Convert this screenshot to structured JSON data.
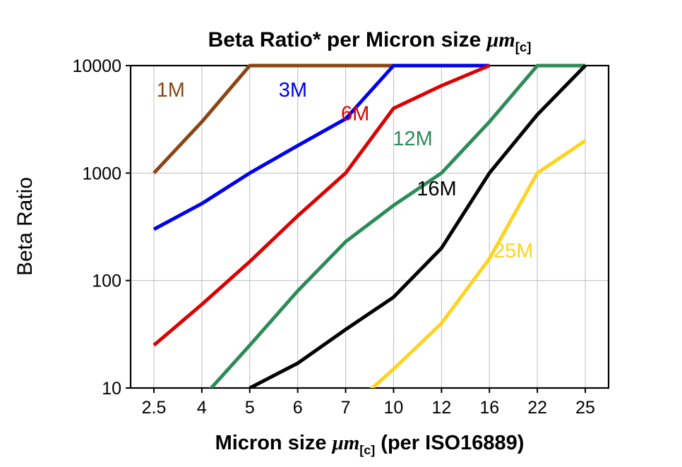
{
  "chart": {
    "title_prefix": "Beta Ratio* per Micron size ",
    "title_mu": "μm",
    "title_sub": "[c]",
    "ylabel": "Beta Ratio",
    "xlabel_prefix": "Micron size ",
    "xlabel_mu": "μm",
    "xlabel_sub": "[c]",
    "xlabel_suffix": " (per ISO16889)"
  },
  "chart_data": {
    "type": "line",
    "title": "Beta Ratio* per Micron size μm[c]",
    "xlabel": "Micron size μm[c] (per ISO16889)",
    "ylabel": "Beta Ratio",
    "grid": true,
    "legend_position": "inline-labels",
    "x_axis": {
      "categories": [
        "2.5",
        "4",
        "5",
        "6",
        "7",
        "10",
        "12",
        "16",
        "22",
        "25"
      ]
    },
    "y_axis": {
      "scale": "log",
      "min": 10,
      "max": 10000,
      "ticks": [
        10,
        100,
        1000,
        10000
      ]
    },
    "series": [
      {
        "name": "1M",
        "color": "#8B4513",
        "values": [
          1000,
          3000,
          10000,
          10000,
          10000,
          10000,
          null,
          null,
          null,
          null
        ],
        "label_pos": {
          "xi": 0.35,
          "yv": 6000
        }
      },
      {
        "name": "3M",
        "color": "#0000EE",
        "values": [
          300,
          520,
          1000,
          1800,
          3200,
          10000,
          10000,
          10000,
          null,
          null
        ],
        "label_pos": {
          "xi": 2.9,
          "yv": 6000
        }
      },
      {
        "name": "6M",
        "color": "#DD0000",
        "values": [
          25,
          60,
          150,
          400,
          1000,
          4000,
          6500,
          10000,
          null,
          null
        ],
        "label_pos": {
          "xi": 4.2,
          "yv": 3600
        }
      },
      {
        "name": "12M",
        "color": "#2E8B57",
        "values": [
          null,
          8,
          25,
          80,
          230,
          500,
          1000,
          3000,
          10000,
          10000
        ],
        "label_pos": {
          "xi": 5.4,
          "yv": 2100
        }
      },
      {
        "name": "16M",
        "color": "#000000",
        "values": [
          null,
          null,
          10,
          17,
          35,
          70,
          200,
          1000,
          3500,
          10000
        ],
        "label_pos": {
          "xi": 5.9,
          "yv": 720
        }
      },
      {
        "name": "25M",
        "color": "#FFD320",
        "values": [
          null,
          null,
          null,
          null,
          6,
          15,
          40,
          160,
          1000,
          2000
        ],
        "label_pos": {
          "xi": 7.5,
          "yv": 190
        }
      }
    ]
  }
}
